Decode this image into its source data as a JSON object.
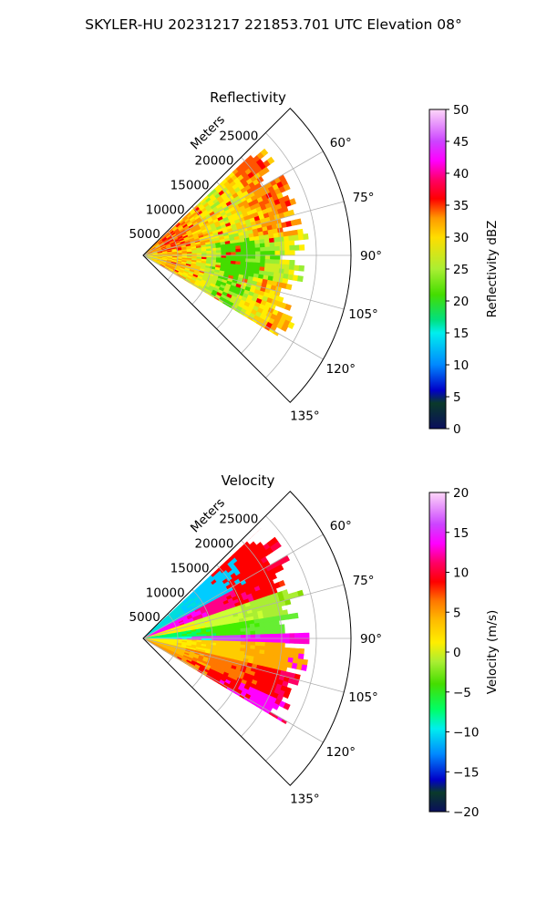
{
  "figure_title": "SKYLER-HU  20231217  221853.701 UTC Elevation 08°",
  "chart_data": [
    {
      "type": "heatmap",
      "subtype": "polar-sector (PPI)",
      "title": "Reflectivity",
      "radial_axis_label": "Meters",
      "radial_ticks": [
        "5000",
        "10000",
        "15000",
        "20000",
        "25000"
      ],
      "angle_ticks": [
        "60°",
        "75°",
        "90°",
        "105°",
        "120°",
        "135°"
      ],
      "theta_range_deg": [
        45,
        135
      ],
      "radial_range_m": [
        0,
        30000
      ],
      "data_extent_m": 24000,
      "grid": true,
      "colorbar": {
        "label": "Reflectivity dBZ",
        "range": [
          0,
          50
        ],
        "ticks": [
          "0",
          "5",
          "10",
          "15",
          "20",
          "25",
          "30",
          "35",
          "40",
          "45",
          "50"
        ]
      }
    },
    {
      "type": "heatmap",
      "subtype": "polar-sector (PPI)",
      "title": "Velocity",
      "radial_axis_label": "Meters",
      "radial_ticks": [
        "5000",
        "10000",
        "15000",
        "20000",
        "25000"
      ],
      "angle_ticks": [
        "60°",
        "75°",
        "90°",
        "105°",
        "120°",
        "135°"
      ],
      "theta_range_deg": [
        45,
        135
      ],
      "radial_range_m": [
        0,
        30000
      ],
      "data_extent_m": 24000,
      "grid": true,
      "colorbar": {
        "label": "Velocity (m/s)",
        "range": [
          -20,
          20
        ],
        "ticks": [
          "−20",
          "−15",
          "−10",
          "−5",
          "0",
          "5",
          "10",
          "15",
          "20"
        ]
      }
    }
  ]
}
